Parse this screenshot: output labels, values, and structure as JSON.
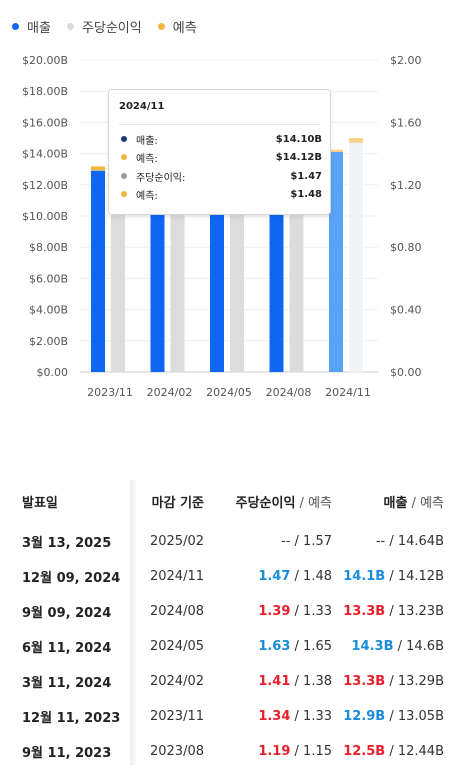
{
  "legend": [
    {
      "label": "매출",
      "color": "#1067f2"
    },
    {
      "label": "주당순이익",
      "color": "#dcdcdc"
    },
    {
      "label": "예측",
      "color": "#f4b63f"
    }
  ],
  "chart_data": {
    "type": "bar",
    "categories": [
      "2023/11",
      "2024/02",
      "2024/05",
      "2024/08",
      "2024/11"
    ],
    "series": [
      {
        "name": "매출",
        "axis": "left",
        "values": [
          12.9,
          13.3,
          14.3,
          13.3,
          14.1
        ],
        "color": "#1067f2"
      },
      {
        "name": "매출 예측",
        "axis": "left",
        "values": [
          13.05,
          13.29,
          14.6,
          13.23,
          14.12
        ],
        "color": "#f4b63f"
      },
      {
        "name": "주당순이익",
        "axis": "right",
        "values": [
          1.34,
          1.41,
          1.63,
          1.39,
          1.47
        ],
        "color": "#dcdcdc"
      },
      {
        "name": "주당순이익 예측",
        "axis": "right",
        "values": [
          1.33,
          1.38,
          1.65,
          1.33,
          1.48
        ],
        "color": "#f4b63f"
      }
    ],
    "left_axis": {
      "ticks": [
        "$0.00",
        "$2.00B",
        "$4.00B",
        "$6.00B",
        "$8.00B",
        "$10.00B",
        "$12.00B",
        "$14.00B",
        "$16.00B",
        "$18.00B",
        "$20.00B"
      ],
      "ylim": [
        0,
        20
      ]
    },
    "right_axis": {
      "ticks": [
        "$0.00",
        "$0.40",
        "$0.80",
        "$1.20",
        "$1.60",
        "$2.00"
      ],
      "ylim": [
        0,
        2
      ]
    },
    "highlighted_category": "2024/11"
  },
  "tooltip": {
    "title": "2024/11",
    "rows": [
      {
        "label": "매출:",
        "value": "$14.10B",
        "color": "#1a3a7a"
      },
      {
        "label": "예측:",
        "value": "$14.12B",
        "color": "#f4b63f"
      },
      {
        "label": "주당순이익:",
        "value": "$1.47",
        "color": "#9a9a9a"
      },
      {
        "label": "예측:",
        "value": "$1.48",
        "color": "#f4b63f"
      }
    ]
  },
  "table": {
    "headers": {
      "date": "발표일",
      "period": "마감 기준",
      "eps": "주당순이익",
      "revenue": "매출",
      "forecast_suffix": " / 예측"
    },
    "rows": [
      {
        "date": "3월 13, 2025",
        "period": "2025/02",
        "eps_actual": "--",
        "eps_forecast": "1.57",
        "eps_status": "none",
        "rev_actual": "--",
        "rev_forecast": "14.64B",
        "rev_status": "none"
      },
      {
        "date": "12월 09, 2024",
        "period": "2024/11",
        "eps_actual": "1.47",
        "eps_forecast": "1.48",
        "eps_status": "pos",
        "rev_actual": "14.1B",
        "rev_forecast": "14.12B",
        "rev_status": "pos"
      },
      {
        "date": "9월 09, 2024",
        "period": "2024/08",
        "eps_actual": "1.39",
        "eps_forecast": "1.33",
        "eps_status": "neg",
        "rev_actual": "13.3B",
        "rev_forecast": "13.23B",
        "rev_status": "neg"
      },
      {
        "date": "6월 11, 2024",
        "period": "2024/05",
        "eps_actual": "1.63",
        "eps_forecast": "1.65",
        "eps_status": "pos",
        "rev_actual": "14.3B",
        "rev_forecast": "14.6B",
        "rev_status": "pos"
      },
      {
        "date": "3월 11, 2024",
        "period": "2024/02",
        "eps_actual": "1.41",
        "eps_forecast": "1.38",
        "eps_status": "neg",
        "rev_actual": "13.3B",
        "rev_forecast": "13.29B",
        "rev_status": "neg"
      },
      {
        "date": "12월 11, 2023",
        "period": "2023/11",
        "eps_actual": "1.34",
        "eps_forecast": "1.33",
        "eps_status": "neg",
        "rev_actual": "12.9B",
        "rev_forecast": "13.05B",
        "rev_status": "pos"
      },
      {
        "date": "9월 11, 2023",
        "period": "2023/08",
        "eps_actual": "1.19",
        "eps_forecast": "1.15",
        "eps_status": "neg",
        "rev_actual": "12.5B",
        "rev_forecast": "12.44B",
        "rev_status": "neg"
      }
    ]
  }
}
